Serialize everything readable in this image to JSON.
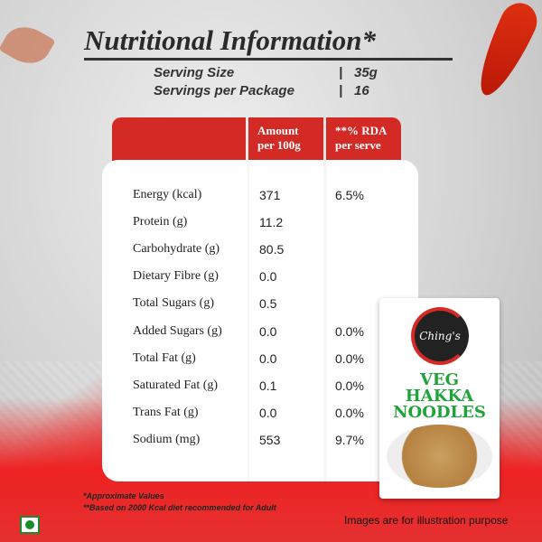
{
  "title": "Nutritional Information*",
  "serving": {
    "size_label": "Serving Size",
    "size_value": "35g",
    "per_package_label": "Servings per Package",
    "per_package_value": "16",
    "separator": "|"
  },
  "table": {
    "headers": [
      "",
      "Amount per 100g",
      "**% RDA per serve"
    ],
    "rows": [
      {
        "nutrient": "Energy (kcal)",
        "amount": "371",
        "rda": "6.5%"
      },
      {
        "nutrient": "Protein (g)",
        "amount": "11.2",
        "rda": ""
      },
      {
        "nutrient": "Carbohydrate (g)",
        "amount": "80.5",
        "rda": ""
      },
      {
        "nutrient": "Dietary Fibre (g)",
        "amount": "0.0",
        "rda": ""
      },
      {
        "nutrient": "Total Sugars (g)",
        "amount": "0.5",
        "rda": ""
      },
      {
        "nutrient": "Added Sugars (g)",
        "amount": "0.0",
        "rda": "0.0%"
      },
      {
        "nutrient": "Total Fat (g)",
        "amount": "0.0",
        "rda": "0.0%"
      },
      {
        "nutrient": "Saturated Fat (g)",
        "amount": "0.1",
        "rda": "0.0%"
      },
      {
        "nutrient": "Trans Fat (g)",
        "amount": "0.0",
        "rda": "0.0%"
      },
      {
        "nutrient": "Sodium (mg)",
        "amount": "553",
        "rda": "9.7%"
      }
    ]
  },
  "product": {
    "brand": "Ching's",
    "name_lines": [
      "VEG",
      "HAKKA",
      "NOODLES"
    ]
  },
  "footnotes": [
    "*Approximate Values",
    "**Based on 2000 Kcal diet recommended for Adult"
  ],
  "disclaimer": "Images are for illustration purpose",
  "colors": {
    "header_red": "#d32a26",
    "veg_green": "#1a8a2a",
    "product_green": "#1fa33a"
  }
}
